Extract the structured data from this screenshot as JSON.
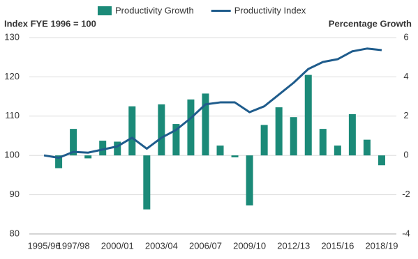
{
  "chart_data": {
    "type": "bar-line",
    "y_label": "Index  FYE 1996 = 100",
    "y2_label": "Percentage Growth",
    "categories": [
      "1995/96",
      null,
      "1997/98",
      null,
      null,
      "2000/01",
      null,
      null,
      "2003/04",
      null,
      null,
      "2006/07",
      null,
      null,
      "2009/10",
      null,
      null,
      "2012/13",
      null,
      null,
      "2015/16",
      null,
      null,
      "2018/19"
    ],
    "series": [
      {
        "name": "Productivity Growth",
        "color": "#1b8a78",
        "axis": "y2",
        "kind": "bar",
        "values": [
          null,
          -0.65,
          1.35,
          -0.15,
          0.75,
          0.7,
          2.5,
          -2.75,
          2.6,
          1.6,
          2.85,
          3.15,
          0.5,
          -0.1,
          -2.55,
          1.55,
          2.45,
          1.95,
          4.1,
          1.35,
          0.5,
          2.1,
          0.8,
          -0.5
        ]
      },
      {
        "name": "Productivity Index",
        "color": "#1f5c8c",
        "axis": "y",
        "kind": "line",
        "values": [
          100,
          99.4,
          100.9,
          100.7,
          101.5,
          102.3,
          104.5,
          101.7,
          104.5,
          106.5,
          109.5,
          113.0,
          113.5,
          113.5,
          111.0,
          112.5,
          115.5,
          118.5,
          122.0,
          123.8,
          124.5,
          126.5,
          127.2,
          126.8
        ]
      }
    ],
    "ylim": [
      80,
      130
    ],
    "yticks": [
      80,
      90,
      100,
      110,
      120,
      130
    ],
    "y2lim": [
      -4,
      6
    ],
    "y2ticks": [
      -4,
      -2,
      0,
      2,
      4,
      6
    ],
    "grid": true
  }
}
